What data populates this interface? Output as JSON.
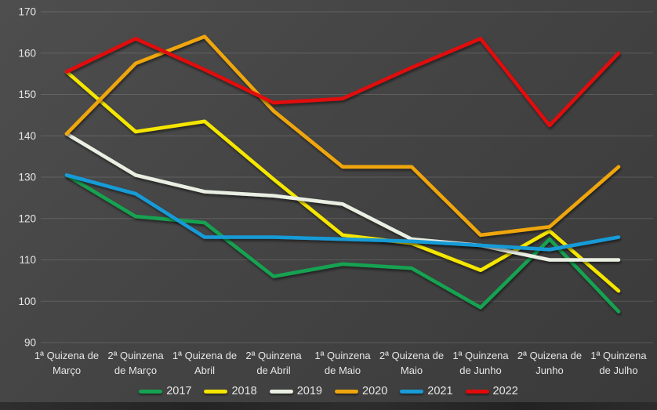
{
  "window": {
    "background_top": "#4e4e4e",
    "background_bottom": "#3a3a3a",
    "bottom_strip_color": "#282828",
    "text_color": "#e6e6e6",
    "grid_color": "rgba(255,255,255,0.14)"
  },
  "chart_data": {
    "type": "line",
    "title": "",
    "grid": true,
    "legend_position": "bottom",
    "ylim": [
      90,
      170
    ],
    "y_step": 10,
    "y_tick_labels": [
      "90",
      "100",
      "110",
      "120",
      "130",
      "140",
      "150",
      "160",
      "170"
    ],
    "categories": [
      "1ª Quizena de Março",
      "2ª Quinzena de Março",
      "1ª Quizena de Abril",
      "2ª Quinzena de Abril",
      "1ª Quinzena de Maio",
      "2ª Quizena de Maio",
      "1ª Quinzena de Junho",
      "2ª Quizena de Junho",
      "1ª Quinzena de Julho"
    ],
    "category_label_lines": [
      [
        "1ª Quizena de",
        "Março"
      ],
      [
        "2ª Quinzena",
        "de Março"
      ],
      [
        "1ª Quizena de",
        "Abril"
      ],
      [
        "2ª Quinzena",
        "de Abril"
      ],
      [
        "1ª Quinzena",
        "de Maio"
      ],
      [
        "2ª Quizena de",
        "Maio"
      ],
      [
        "1ª Quinzena",
        "de Junho"
      ],
      [
        "2ª Quizena de",
        "Junho"
      ],
      [
        "1ª Quinzena",
        "de Julho"
      ]
    ],
    "series": [
      {
        "name": "2017",
        "color": "#14A251",
        "values": [
          130.5,
          120.5,
          119,
          106,
          109,
          108,
          98.5,
          115,
          97.5
        ]
      },
      {
        "name": "2018",
        "color": "#F5E600",
        "values": [
          155.5,
          141,
          143.5,
          129.5,
          116,
          114,
          107.5,
          117,
          102.5
        ]
      },
      {
        "name": "2019",
        "color": "#E9EFE2",
        "values": [
          140.5,
          130.5,
          126.5,
          125.5,
          123.5,
          115,
          113.5,
          110,
          110
        ]
      },
      {
        "name": "2020",
        "color": "#EFA60C",
        "values": [
          140.5,
          157.5,
          164,
          146,
          132.5,
          132.5,
          116,
          118,
          132.5
        ]
      },
      {
        "name": "2021",
        "color": "#199BD7",
        "values": [
          130.5,
          126,
          115.5,
          115.5,
          115,
          114.5,
          113.5,
          112.5,
          115.5
        ]
      },
      {
        "name": "2022",
        "color": "#E10A0A",
        "values": [
          155.5,
          163.5,
          156,
          148,
          149,
          156.5,
          163.5,
          142.5,
          160
        ]
      }
    ]
  }
}
